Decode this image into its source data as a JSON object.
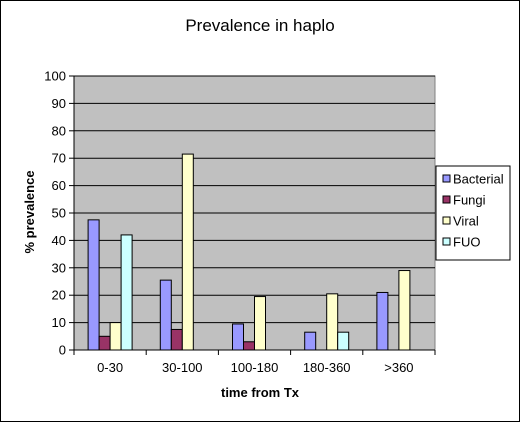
{
  "chart_data": {
    "type": "bar",
    "title": "Prevalence in haplo",
    "xlabel": "time from Tx",
    "ylabel": "% prevalence",
    "categories": [
      "0-30",
      "30-100",
      "100-180",
      "180-360",
      ">360"
    ],
    "ylim": [
      0,
      100
    ],
    "yticks": [
      0,
      10,
      20,
      30,
      40,
      50,
      60,
      70,
      80,
      90,
      100
    ],
    "grid": true,
    "legend_position": "right",
    "series": [
      {
        "name": "Bacterial",
        "color": "#9999FF",
        "values": [
          47.5,
          25.5,
          9.5,
          6.5,
          21
        ]
      },
      {
        "name": "Fungi",
        "color": "#993366",
        "values": [
          5,
          7.5,
          3,
          0,
          0
        ]
      },
      {
        "name": "Viral",
        "color": "#FFFFCC",
        "values": [
          10,
          71.5,
          19.5,
          20.5,
          29
        ]
      },
      {
        "name": "FUO",
        "color": "#CCFFFF",
        "values": [
          42,
          0,
          0,
          6.5,
          0
        ]
      }
    ],
    "colors": {
      "plot_background": "#C0C0C0",
      "gridline": "#000000",
      "bar_outline": "#000000",
      "page_background": "#FFFFFF"
    }
  }
}
